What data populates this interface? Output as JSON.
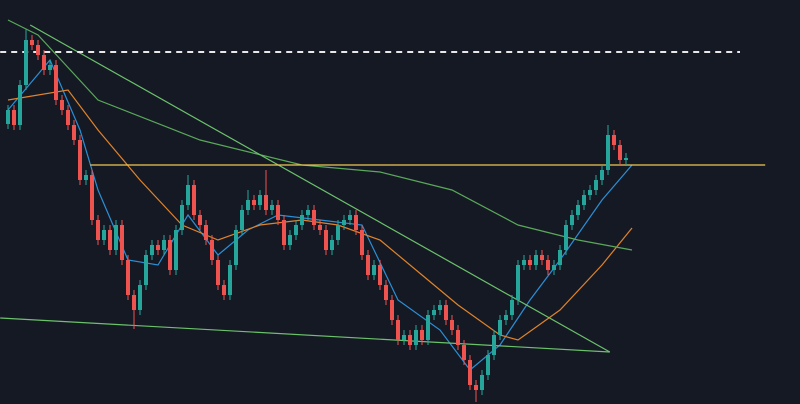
{
  "chart_data": {
    "type": "candlestick",
    "up_color": "#26a69a",
    "down_color": "#ef5350",
    "ylim": [
      0,
      404
    ],
    "open": [
      280,
      294,
      279,
      319,
      364,
      359,
      349,
      334,
      339,
      304,
      294,
      279,
      264,
      224,
      229,
      184,
      164,
      174,
      154,
      179,
      144,
      109,
      94,
      119,
      149,
      159,
      154,
      164,
      134,
      174,
      199,
      219,
      189,
      179,
      164,
      144,
      119,
      109,
      139,
      174,
      194,
      204,
      199,
      209,
      194,
      199,
      184,
      159,
      169,
      179,
      189,
      194,
      179,
      174,
      154,
      164,
      179,
      184,
      189,
      174,
      149,
      129,
      139,
      119,
      104,
      84,
      64,
      69,
      59,
      74,
      64,
      89,
      94,
      99,
      84,
      74,
      59,
      44,
      19,
      14,
      29,
      49,
      69,
      84,
      89,
      104,
      139,
      144,
      139,
      149,
      144,
      134,
      139,
      154,
      179,
      189,
      199,
      209,
      214,
      224,
      234,
      269,
      259,
      244
    ],
    "high": [
      299,
      299,
      324,
      375,
      369,
      364,
      354,
      344,
      344,
      309,
      299,
      284,
      269,
      234,
      234,
      189,
      179,
      179,
      184,
      184,
      149,
      114,
      124,
      154,
      164,
      164,
      169,
      169,
      179,
      204,
      229,
      224,
      194,
      184,
      169,
      149,
      124,
      144,
      179,
      199,
      214,
      209,
      214,
      234,
      204,
      204,
      189,
      174,
      184,
      194,
      199,
      199,
      184,
      179,
      169,
      184,
      189,
      194,
      194,
      179,
      154,
      144,
      144,
      124,
      109,
      89,
      74,
      74,
      79,
      79,
      94,
      99,
      104,
      104,
      89,
      79,
      64,
      49,
      24,
      34,
      54,
      74,
      89,
      94,
      109,
      144,
      149,
      149,
      154,
      154,
      149,
      144,
      159,
      184,
      194,
      204,
      214,
      219,
      229,
      239,
      279,
      274,
      264,
      251
    ],
    "low": [
      275,
      274,
      274,
      314,
      354,
      344,
      329,
      329,
      299,
      289,
      274,
      259,
      219,
      219,
      179,
      159,
      159,
      149,
      149,
      139,
      104,
      75,
      89,
      114,
      144,
      149,
      149,
      129,
      129,
      169,
      194,
      184,
      174,
      159,
      139,
      114,
      104,
      104,
      134,
      169,
      189,
      194,
      194,
      189,
      189,
      179,
      154,
      154,
      164,
      174,
      184,
      174,
      169,
      149,
      149,
      159,
      174,
      179,
      169,
      144,
      124,
      124,
      114,
      99,
      79,
      59,
      59,
      54,
      54,
      59,
      59,
      84,
      89,
      79,
      69,
      54,
      39,
      14,
      2,
      9,
      24,
      44,
      64,
      79,
      84,
      99,
      134,
      134,
      134,
      139,
      129,
      129,
      134,
      149,
      174,
      184,
      194,
      204,
      209,
      219,
      229,
      254,
      239,
      239
    ],
    "close": [
      294,
      279,
      319,
      364,
      359,
      349,
      334,
      339,
      304,
      294,
      279,
      264,
      224,
      229,
      184,
      164,
      174,
      154,
      179,
      144,
      109,
      94,
      119,
      149,
      159,
      154,
      164,
      134,
      174,
      199,
      219,
      189,
      179,
      164,
      144,
      119,
      109,
      139,
      174,
      194,
      204,
      199,
      209,
      194,
      199,
      184,
      159,
      169,
      179,
      189,
      194,
      179,
      174,
      154,
      164,
      179,
      184,
      189,
      174,
      149,
      129,
      139,
      119,
      104,
      84,
      64,
      69,
      59,
      74,
      64,
      89,
      94,
      99,
      84,
      74,
      59,
      44,
      19,
      14,
      29,
      49,
      69,
      84,
      89,
      104,
      139,
      144,
      139,
      149,
      144,
      134,
      139,
      154,
      179,
      189,
      199,
      209,
      214,
      224,
      234,
      269,
      259,
      244,
      246
    ],
    "lines": [
      {
        "color": "#2b8fd6",
        "x": [
          0,
          7,
          12,
          15,
          20,
          25,
          30,
          35,
          40,
          45,
          52,
          59,
          65,
          72,
          77,
          82,
          87,
          92,
          99,
          104
        ],
        "values": [
          294,
          344,
          274,
          214,
          144,
          139,
          189,
          149,
          174,
          189,
          184,
          179,
          104,
          74,
          34,
          59,
          104,
          144,
          204,
          239
        ]
      },
      {
        "color": "#e0832a",
        "x": [
          0,
          10,
          15,
          22,
          29,
          35,
          42,
          49,
          55,
          62,
          69,
          75,
          82,
          85,
          92,
          99,
          104
        ],
        "values": [
          304,
          314,
          274,
          224,
          179,
          164,
          179,
          184,
          179,
          164,
          129,
          99,
          69,
          64,
          94,
          139,
          176
        ]
      },
      {
        "color": "#5aa85a",
        "x": [
          0,
          5,
          15,
          32,
          49,
          62,
          74,
          85,
          95,
          104
        ],
        "values": [
          384,
          369,
          304,
          264,
          239,
          232,
          214,
          179,
          164,
          154
        ]
      },
      {
        "color": "#6cc26c",
        "x": [
          3.7,
          100.3
        ],
        "values": [
          379,
          52
        ]
      },
      {
        "color": "#6cc26c",
        "x": [
          -1.3,
          100.3
        ],
        "values": [
          86,
          52
        ]
      },
      {
        "color": "#f0c850",
        "x": [
          13.7,
          126.2
        ],
        "values": [
          239,
          239
        ]
      },
      {
        "color": "#e8e8e8",
        "dashed": true,
        "x": [
          -1.3,
          122
        ],
        "values": [
          352,
          352
        ]
      }
    ]
  }
}
